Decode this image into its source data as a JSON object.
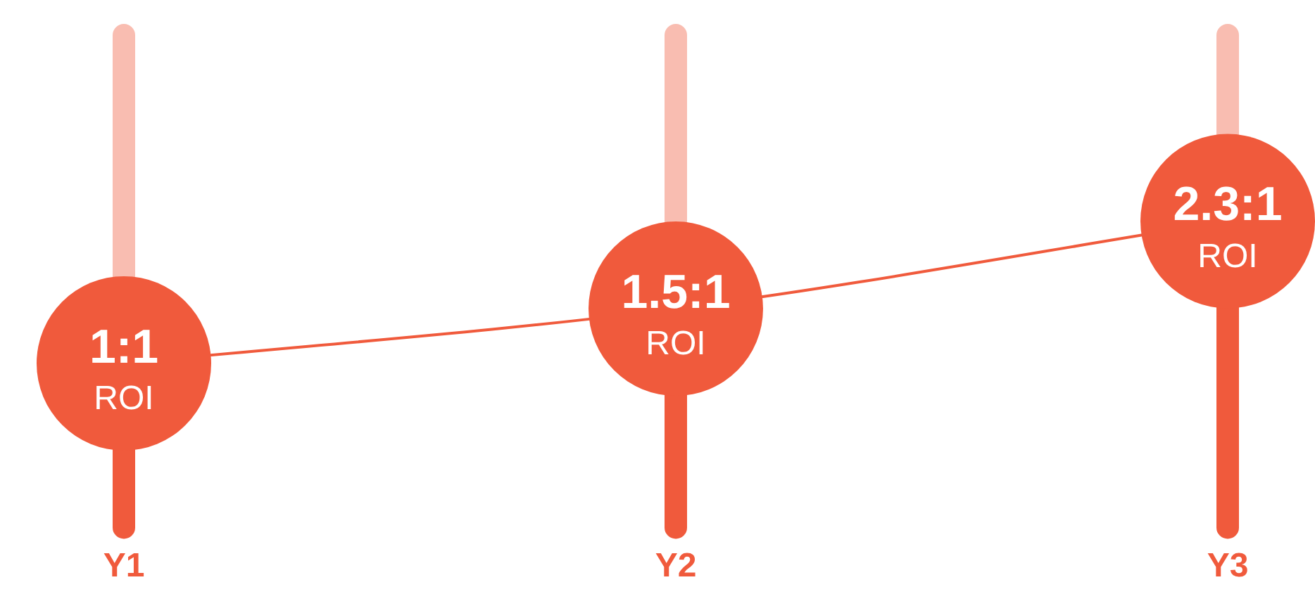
{
  "chart_data": {
    "type": "line",
    "categories": [
      "Y1",
      "Y2",
      "Y3"
    ],
    "values": [
      1,
      1.5,
      2.3
    ],
    "color": "#f05a3c",
    "value_labels": [
      "1:1",
      "1.5:1",
      "2.3:1"
    ],
    "annotations": [
      {
        "text": "ROI",
        "x": "Y1",
        "y": 1
      },
      {
        "text": "ROI",
        "x": "Y2",
        "y": 1.5
      },
      {
        "text": "ROI",
        "x": "Y3",
        "y": 2.3
      }
    ],
    "ylim": [
      -0.5,
      4
    ],
    "tick_labels": "x",
    "grid": false,
    "legend": false,
    "line_style": "solid"
  }
}
